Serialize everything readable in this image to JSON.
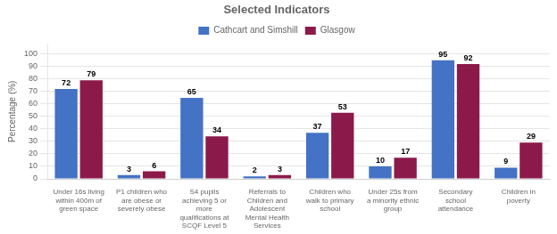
{
  "chart_data": {
    "type": "bar",
    "title": "Selected Indicators",
    "categories": [
      "Under 16s living\nwithin 400m of\ngreen space",
      "P1 children who\nare obese or\nseverely obese",
      "S4 pupils\nachieving 5 or\nmore\nqualifications at\nSCQF Level 5",
      "Referrals to\nChildren and\nAdolescent\nMental Health\nServices",
      "Children who\nwalk to primary\nschool",
      "Under 25s from\na minority ethnic\ngroup",
      "Secondary\nschool\nattendance",
      "Children in\npoverty"
    ],
    "series": [
      {
        "name": "Cathcart and Simshill",
        "color": "#4472C4",
        "values": [
          72,
          3,
          65,
          2,
          37,
          10,
          95,
          9
        ]
      },
      {
        "name": "Glasgow",
        "color": "#8B1A4A",
        "values": [
          79,
          6,
          34,
          3,
          53,
          17,
          92,
          29
        ]
      }
    ],
    "ylabel": "Percentage (%)",
    "ylim": [
      0,
      108
    ],
    "yticks": [
      0,
      10,
      20,
      30,
      40,
      50,
      60,
      70,
      80,
      90,
      100
    ],
    "grid": true,
    "legend": "top",
    "data_labels": true
  }
}
